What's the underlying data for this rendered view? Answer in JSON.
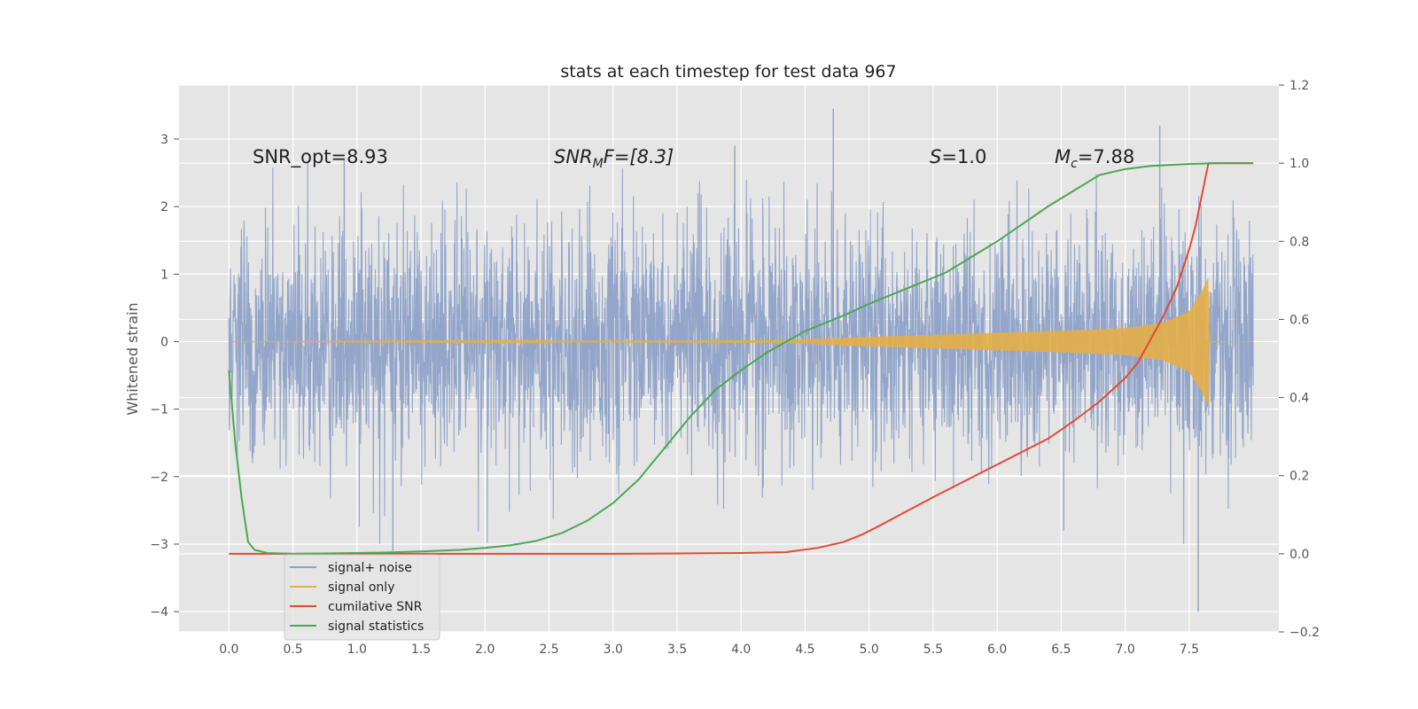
{
  "chart_data": {
    "type": "line",
    "title": "stats at each timestep for test data 967",
    "ylabel": "Whitened strain",
    "xlim": [
      -0.39,
      8.2
    ],
    "ylim": [
      -4.3,
      3.8
    ],
    "y2lim": [
      -0.2,
      1.2
    ],
    "x_ticks": [
      0.0,
      0.5,
      1.0,
      1.5,
      2.0,
      2.5,
      3.0,
      3.5,
      4.0,
      4.5,
      5.0,
      5.5,
      6.0,
      6.5,
      7.0,
      7.5
    ],
    "x_tick_labels": [
      "0.0",
      "0.5",
      "1.0",
      "1.5",
      "2.0",
      "2.5",
      "3.0",
      "3.5",
      "4.0",
      "4.5",
      "5.0",
      "5.5",
      "6.0",
      "6.5",
      "7.0",
      "7.5"
    ],
    "y_ticks": [
      -4,
      -3,
      -2,
      -1,
      0,
      1,
      2,
      3
    ],
    "y_tick_labels": [
      "−4",
      "−3",
      "−2",
      "−1",
      "0",
      "1",
      "2",
      "3"
    ],
    "y2_ticks": [
      -0.2,
      0.0,
      0.2,
      0.4,
      0.6,
      0.8,
      1.0,
      1.2
    ],
    "y2_tick_labels": [
      "−0.2",
      "0.0",
      "0.2",
      "0.4",
      "0.6",
      "0.8",
      "1.0",
      "1.2"
    ],
    "grid": true,
    "legend_position": "lower-left",
    "annotations": {
      "snr_opt": "SNR_opt=8.93",
      "snr_mf_main": "SNR",
      "snr_mf_sub": "M",
      "snr_mf_rest": "F=[8.3]",
      "s_italic": "S",
      "s_rest": "=1.0",
      "mc_main": "M",
      "mc_sub": "c",
      "mc_rest": "=7.88"
    },
    "series": [
      {
        "name": "signal+ noise",
        "axis": "left",
        "color": "#8ea2c8",
        "noise_std": 0.85,
        "x_end": 8.0,
        "peaks": [
          [
            4.72,
            3.45
          ],
          [
            7.27,
            3.2
          ],
          [
            7.57,
            -4.0
          ],
          [
            1.28,
            -3.1
          ],
          [
            0.9,
            2.7
          ],
          [
            3.95,
            2.9
          ],
          [
            6.52,
            -2.8
          ]
        ]
      },
      {
        "name": "signal only",
        "axis": "left",
        "color": "#e4ae48",
        "envelope": [
          [
            0.0,
            0.0
          ],
          [
            4.3,
            0.02
          ],
          [
            5.0,
            0.07
          ],
          [
            5.5,
            0.1
          ],
          [
            6.0,
            0.13
          ],
          [
            6.5,
            0.16
          ],
          [
            7.0,
            0.2
          ],
          [
            7.3,
            0.28
          ],
          [
            7.5,
            0.45
          ],
          [
            7.6,
            0.75
          ],
          [
            7.65,
            0.95
          ],
          [
            7.66,
            0.0
          ],
          [
            8.0,
            0.0
          ]
        ]
      },
      {
        "name": "cumilative SNR",
        "axis": "right",
        "color": "#e24a33",
        "x": [
          0.0,
          1.0,
          2.0,
          3.0,
          4.0,
          4.35,
          4.6,
          4.8,
          4.95,
          5.1,
          5.3,
          5.5,
          5.8,
          6.1,
          6.4,
          6.6,
          6.8,
          7.0,
          7.1,
          7.2,
          7.3,
          7.4,
          7.5,
          7.55,
          7.6,
          7.65,
          7.7,
          7.75,
          8.0
        ],
        "values": [
          0.0,
          0.0,
          0.0,
          0.0,
          0.002,
          0.004,
          0.015,
          0.03,
          0.05,
          0.075,
          0.11,
          0.145,
          0.195,
          0.245,
          0.295,
          0.34,
          0.39,
          0.45,
          0.49,
          0.55,
          0.61,
          0.68,
          0.78,
          0.84,
          0.92,
          1.0,
          1.0,
          1.0,
          1.0
        ]
      },
      {
        "name": "signal statistics",
        "axis": "right",
        "color": "#4aa853",
        "x": [
          0.0,
          0.05,
          0.1,
          0.15,
          0.2,
          0.3,
          0.5,
          0.8,
          1.2,
          1.5,
          1.8,
          2.0,
          2.2,
          2.4,
          2.6,
          2.8,
          3.0,
          3.2,
          3.4,
          3.6,
          3.8,
          4.0,
          4.2,
          4.5,
          4.8,
          5.0,
          5.3,
          5.6,
          5.8,
          6.0,
          6.2,
          6.4,
          6.6,
          6.8,
          7.0,
          7.2,
          7.5,
          7.75,
          8.0
        ],
        "values": [
          0.47,
          0.28,
          0.14,
          0.03,
          0.01,
          0.002,
          0.0,
          0.001,
          0.003,
          0.006,
          0.01,
          0.015,
          0.022,
          0.033,
          0.053,
          0.085,
          0.13,
          0.19,
          0.27,
          0.35,
          0.42,
          0.47,
          0.515,
          0.57,
          0.61,
          0.64,
          0.68,
          0.72,
          0.76,
          0.8,
          0.845,
          0.89,
          0.93,
          0.97,
          0.985,
          0.993,
          0.998,
          1.0,
          1.0
        ]
      }
    ]
  }
}
